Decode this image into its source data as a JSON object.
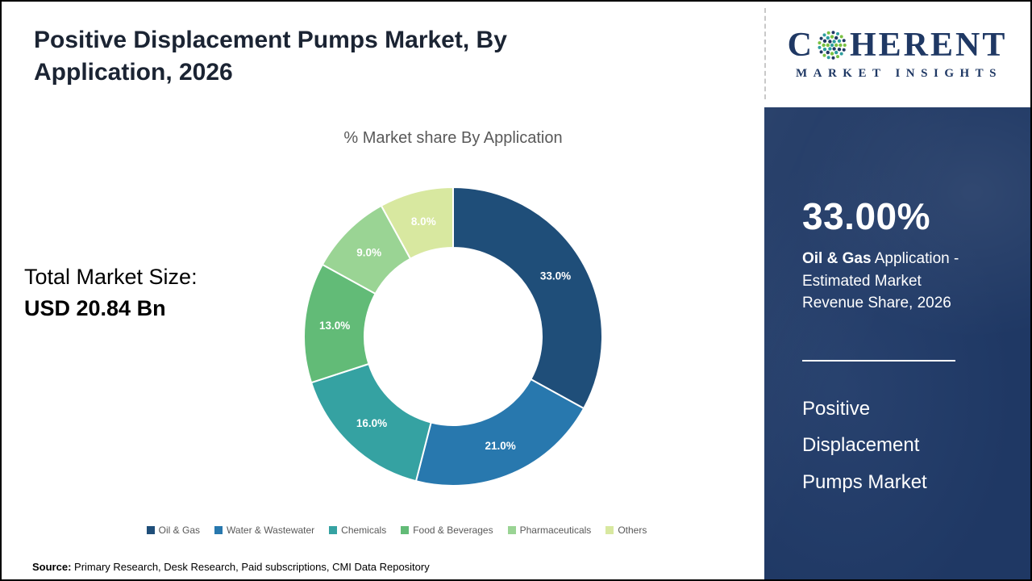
{
  "header": {
    "title": "Positive Displacement Pumps Market, By Application, 2026"
  },
  "logo": {
    "word_prefix": "C",
    "word_suffix": "HERENT",
    "subtitle": "MARKET INSIGHTS",
    "brand_navy": "#1F3864",
    "brand_teal": "#2E9E9E",
    "brand_green": "#7AC143"
  },
  "market_size": {
    "label": "Total Market Size:",
    "value": "USD 20.84 Bn"
  },
  "chart_data": {
    "type": "pie",
    "title": "% Market share By Application",
    "categories": [
      "Oil & Gas",
      "Water & Wastewater",
      "Chemicals",
      "Food & Beverages",
      "Pharmaceuticals",
      "Others"
    ],
    "values": [
      33.0,
      21.0,
      16.0,
      13.0,
      9.0,
      8.0
    ],
    "labels": [
      "33.0%",
      "21.0%",
      "16.0%",
      "13.0%",
      "9.0%",
      "8.0%"
    ],
    "colors": [
      "#1F4E79",
      "#2878AE",
      "#35A2A2",
      "#62BB77",
      "#9AD494",
      "#D8E8A0"
    ],
    "donut": true,
    "inner_radius_ratio": 0.595,
    "start_angle_deg": 0,
    "direction": "clockwise",
    "legend_position": "bottom",
    "label_color": "#ffffff"
  },
  "sidebar": {
    "stat_value": "33.00%",
    "stat_bold": "Oil & Gas",
    "stat_rest": " Application - Estimated Market Revenue Share, 2026",
    "product_title": "Positive Displacement Pumps Market"
  },
  "source": {
    "label": "Source:",
    "text": " Primary Research, Desk Research, Paid subscriptions, CMI Data Repository"
  }
}
